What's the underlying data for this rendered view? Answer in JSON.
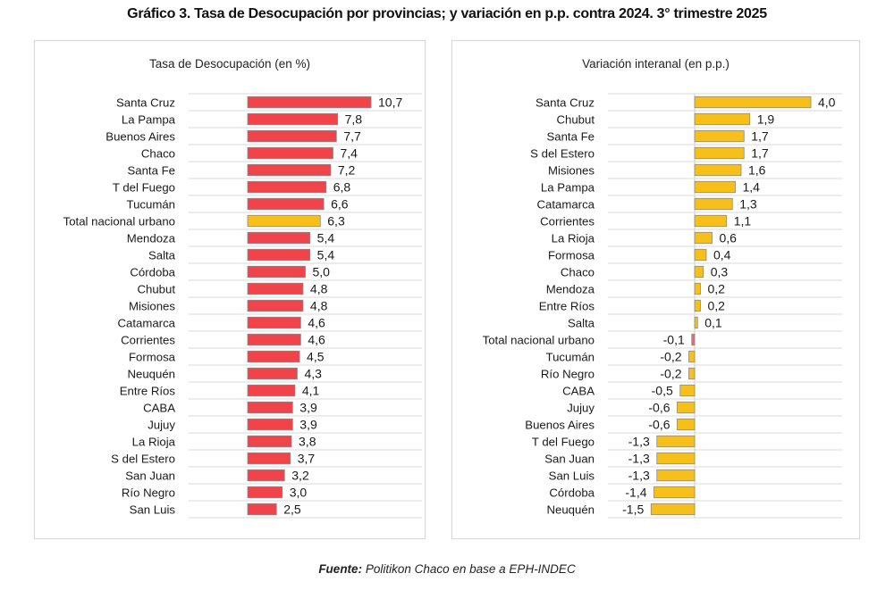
{
  "title": "Gráfico 3. Tasa de Desocupación por provincias; y variación en p.p. contra 2024. 3° trimestre 2025",
  "source_label": "Fuente:",
  "source_text": "Politikon Chaco en base a EPH-INDEC",
  "colors": {
    "red_bar": "#f0434a",
    "yellow_bar": "#f6bf1a",
    "highlight_bar": "#f6bf1a",
    "negative_total_bar": "#d9707a",
    "bar_border": "#8a8a8a",
    "gridline": "#d9d9d9"
  },
  "chart_data": [
    {
      "type": "bar",
      "orientation": "horizontal",
      "title": "Tasa de Desocupación (en %)",
      "xlabel": "",
      "ylabel": "",
      "xlim": [
        0,
        12
      ],
      "grid": true,
      "legend": "none",
      "decimal_separator": ",",
      "categories": [
        "Santa Cruz",
        "La Pampa",
        "Buenos Aires",
        "Chaco",
        "Santa Fe",
        "T del Fuego",
        "Tucumán",
        "Total nacional urbano",
        "Mendoza",
        "Salta",
        "Córdoba",
        "Chubut",
        "Misiones",
        "Catamarca",
        "Corrientes",
        "Formosa",
        "Neuquén",
        "Entre Ríos",
        "CABA",
        "Jujuy",
        "La Rioja",
        "S del Estero",
        "San Juan",
        "Río Negro",
        "San Luis"
      ],
      "values": [
        10.7,
        7.8,
        7.7,
        7.4,
        7.2,
        6.8,
        6.6,
        6.3,
        5.4,
        5.4,
        5.0,
        4.8,
        4.8,
        4.6,
        4.6,
        4.5,
        4.3,
        4.1,
        3.9,
        3.9,
        3.8,
        3.7,
        3.2,
        3.0,
        2.5
      ],
      "highlight": [
        "Total nacional urbano"
      ],
      "labels": [
        "10,7",
        "7,8",
        "7,7",
        "7,4",
        "7,2",
        "6,8",
        "6,6",
        "6,3",
        "5,4",
        "5,4",
        "5,0",
        "4,8",
        "4,8",
        "4,6",
        "4,6",
        "4,5",
        "4,3",
        "4,1",
        "3,9",
        "3,9",
        "3,8",
        "3,7",
        "3,2",
        "3,0",
        "2,5"
      ]
    },
    {
      "type": "bar",
      "orientation": "horizontal",
      "title": "Variación interanal (en p.p.)",
      "xlabel": "",
      "ylabel": "",
      "xlim": [
        -3,
        5
      ],
      "grid": true,
      "legend": "none",
      "decimal_separator": ",",
      "categories": [
        "Santa Cruz",
        "Chubut",
        "Santa Fe",
        "S del Estero",
        "Misiones",
        "La Pampa",
        "Catamarca",
        "Corrientes",
        "La Rioja",
        "Formosa",
        "Chaco",
        "Mendoza",
        "Entre Ríos",
        "Salta",
        "Total nacional urbano",
        "Tucumán",
        "Río Negro",
        "CABA",
        "Jujuy",
        "Buenos Aires",
        "T del Fuego",
        "San Juan",
        "San Luis",
        "Córdoba",
        "Neuquén"
      ],
      "values": [
        4.0,
        1.9,
        1.7,
        1.7,
        1.6,
        1.4,
        1.3,
        1.1,
        0.6,
        0.4,
        0.3,
        0.2,
        0.2,
        0.1,
        -0.1,
        -0.2,
        -0.2,
        -0.5,
        -0.6,
        -0.6,
        -1.3,
        -1.3,
        -1.3,
        -1.4,
        -1.5
      ],
      "highlight": [
        "Total nacional urbano"
      ],
      "labels": [
        "4,0",
        "1,9",
        "1,7",
        "1,7",
        "1,6",
        "1,4",
        "1,3",
        "1,1",
        "0,6",
        "0,4",
        "0,3",
        "0,2",
        "0,2",
        "0,1",
        "-0,1",
        "-0,2",
        "-0,2",
        "-0,5",
        "-0,6",
        "-0,6",
        "-1,3",
        "-1,3",
        "-1,3",
        "-1,4",
        "-1,5"
      ]
    }
  ]
}
